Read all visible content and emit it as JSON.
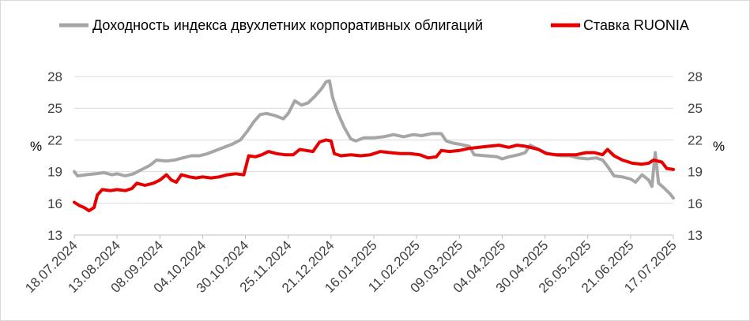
{
  "chart_data": {
    "type": "line",
    "x_tick_labels": [
      "18.07.2024",
      "13.08.2024",
      "08.09.2024",
      "04.10.2024",
      "30.10.2024",
      "25.11.2024",
      "21.12.2024",
      "16.01.2025",
      "11.02.2025",
      "09.03.2025",
      "04.04.2025",
      "30.04.2025",
      "26.05.2025",
      "21.06.2025",
      "17.07.2025"
    ],
    "x_range": [
      "2024-07-18",
      "2025-07-17"
    ],
    "y_left": {
      "ticks": [
        13,
        16,
        19,
        22,
        25,
        28
      ],
      "range": [
        13,
        28
      ],
      "unit": "%"
    },
    "y_right": {
      "ticks": [
        13,
        16,
        19,
        22,
        25,
        28
      ],
      "range": [
        13,
        28
      ],
      "unit": "%"
    },
    "grid": "horizontal",
    "legend_position": "top",
    "series": [
      {
        "name": "Доходность индекса двухлетних корпоративных  облигаций",
        "color": "#a6a6a6",
        "points": [
          [
            "2024-07-18",
            19.0
          ],
          [
            "2024-07-20",
            18.6
          ],
          [
            "2024-07-25",
            18.7
          ],
          [
            "2024-07-31",
            18.8
          ],
          [
            "2024-08-05",
            18.9
          ],
          [
            "2024-08-10",
            18.7
          ],
          [
            "2024-08-13",
            18.8
          ],
          [
            "2024-08-18",
            18.6
          ],
          [
            "2024-08-23",
            18.8
          ],
          [
            "2024-08-28",
            19.2
          ],
          [
            "2024-09-02",
            19.6
          ],
          [
            "2024-09-06",
            20.1
          ],
          [
            "2024-09-12",
            20.0
          ],
          [
            "2024-09-17",
            20.1
          ],
          [
            "2024-09-22",
            20.3
          ],
          [
            "2024-09-27",
            20.5
          ],
          [
            "2024-10-02",
            20.5
          ],
          [
            "2024-10-07",
            20.7
          ],
          [
            "2024-10-12",
            21.0
          ],
          [
            "2024-10-17",
            21.3
          ],
          [
            "2024-10-22",
            21.6
          ],
          [
            "2024-10-27",
            22.0
          ],
          [
            "2024-10-31",
            22.8
          ],
          [
            "2024-11-04",
            23.7
          ],
          [
            "2024-11-08",
            24.4
          ],
          [
            "2024-11-12",
            24.5
          ],
          [
            "2024-11-17",
            24.3
          ],
          [
            "2024-11-22",
            24.0
          ],
          [
            "2024-11-25",
            24.5
          ],
          [
            "2024-11-29",
            25.7
          ],
          [
            "2024-12-03",
            25.3
          ],
          [
            "2024-12-07",
            25.5
          ],
          [
            "2024-12-11",
            26.1
          ],
          [
            "2024-12-15",
            26.8
          ],
          [
            "2024-12-18",
            27.5
          ],
          [
            "2024-12-20",
            27.6
          ],
          [
            "2024-12-22",
            26.0
          ],
          [
            "2024-12-25",
            24.6
          ],
          [
            "2024-12-29",
            23.2
          ],
          [
            "2025-01-02",
            22.1
          ],
          [
            "2025-01-05",
            21.9
          ],
          [
            "2025-01-10",
            22.2
          ],
          [
            "2025-01-16",
            22.2
          ],
          [
            "2025-01-22",
            22.3
          ],
          [
            "2025-01-28",
            22.5
          ],
          [
            "2025-02-03",
            22.3
          ],
          [
            "2025-02-09",
            22.5
          ],
          [
            "2025-02-14",
            22.4
          ],
          [
            "2025-02-20",
            22.6
          ],
          [
            "2025-02-26",
            22.6
          ],
          [
            "2025-03-01",
            21.9
          ],
          [
            "2025-03-05",
            21.7
          ],
          [
            "2025-03-09",
            21.6
          ],
          [
            "2025-03-15",
            21.4
          ],
          [
            "2025-03-18",
            20.6
          ],
          [
            "2025-03-25",
            20.5
          ],
          [
            "2025-04-01",
            20.4
          ],
          [
            "2025-04-04",
            20.2
          ],
          [
            "2025-04-08",
            20.4
          ],
          [
            "2025-04-14",
            20.6
          ],
          [
            "2025-04-18",
            20.8
          ],
          [
            "2025-04-21",
            21.5
          ],
          [
            "2025-04-25",
            21.2
          ],
          [
            "2025-04-30",
            20.8
          ],
          [
            "2025-05-05",
            20.6
          ],
          [
            "2025-05-10",
            20.5
          ],
          [
            "2025-05-15",
            20.5
          ],
          [
            "2025-05-20",
            20.3
          ],
          [
            "2025-05-26",
            20.2
          ],
          [
            "2025-05-31",
            20.3
          ],
          [
            "2025-06-04",
            20.1
          ],
          [
            "2025-06-07",
            19.5
          ],
          [
            "2025-06-11",
            18.6
          ],
          [
            "2025-06-16",
            18.5
          ],
          [
            "2025-06-21",
            18.3
          ],
          [
            "2025-06-24",
            18.0
          ],
          [
            "2025-06-28",
            18.7
          ],
          [
            "2025-07-02",
            18.2
          ],
          [
            "2025-07-04",
            17.6
          ],
          [
            "2025-07-06",
            20.8
          ],
          [
            "2025-07-08",
            17.9
          ],
          [
            "2025-07-11",
            17.5
          ],
          [
            "2025-07-15",
            16.9
          ],
          [
            "2025-07-17",
            16.5
          ]
        ]
      },
      {
        "name": "Ставка RUONIA",
        "color": "#e60000",
        "points": [
          [
            "2024-07-18",
            16.1
          ],
          [
            "2024-07-21",
            15.8
          ],
          [
            "2024-07-24",
            15.6
          ],
          [
            "2024-07-27",
            15.3
          ],
          [
            "2024-07-30",
            15.6
          ],
          [
            "2024-08-01",
            16.8
          ],
          [
            "2024-08-04",
            17.3
          ],
          [
            "2024-08-09",
            17.2
          ],
          [
            "2024-08-13",
            17.3
          ],
          [
            "2024-08-18",
            17.2
          ],
          [
            "2024-08-22",
            17.4
          ],
          [
            "2024-08-25",
            17.9
          ],
          [
            "2024-08-30",
            17.7
          ],
          [
            "2024-09-04",
            17.9
          ],
          [
            "2024-09-08",
            18.2
          ],
          [
            "2024-09-12",
            18.7
          ],
          [
            "2024-09-15",
            18.2
          ],
          [
            "2024-09-18",
            18.0
          ],
          [
            "2024-09-21",
            18.7
          ],
          [
            "2024-09-26",
            18.5
          ],
          [
            "2024-09-30",
            18.4
          ],
          [
            "2024-10-04",
            18.5
          ],
          [
            "2024-10-09",
            18.4
          ],
          [
            "2024-10-14",
            18.5
          ],
          [
            "2024-10-19",
            18.7
          ],
          [
            "2024-10-24",
            18.8
          ],
          [
            "2024-10-29",
            18.7
          ],
          [
            "2024-11-01",
            20.5
          ],
          [
            "2024-11-05",
            20.4
          ],
          [
            "2024-11-09",
            20.6
          ],
          [
            "2024-11-13",
            20.9
          ],
          [
            "2024-11-18",
            20.7
          ],
          [
            "2024-11-23",
            20.6
          ],
          [
            "2024-11-28",
            20.6
          ],
          [
            "2024-12-02",
            21.1
          ],
          [
            "2024-12-06",
            21.0
          ],
          [
            "2024-12-10",
            20.9
          ],
          [
            "2024-12-14",
            21.8
          ],
          [
            "2024-12-18",
            22.0
          ],
          [
            "2024-12-21",
            21.9
          ],
          [
            "2024-12-23",
            20.7
          ],
          [
            "2024-12-27",
            20.5
          ],
          [
            "2025-01-02",
            20.6
          ],
          [
            "2025-01-08",
            20.5
          ],
          [
            "2025-01-14",
            20.6
          ],
          [
            "2025-01-20",
            20.9
          ],
          [
            "2025-01-26",
            20.8
          ],
          [
            "2025-02-01",
            20.7
          ],
          [
            "2025-02-07",
            20.7
          ],
          [
            "2025-02-13",
            20.6
          ],
          [
            "2025-02-18",
            20.3
          ],
          [
            "2025-02-23",
            20.4
          ],
          [
            "2025-02-26",
            21.0
          ],
          [
            "2025-03-03",
            20.9
          ],
          [
            "2025-03-09",
            21.0
          ],
          [
            "2025-03-15",
            21.2
          ],
          [
            "2025-03-21",
            21.3
          ],
          [
            "2025-03-27",
            21.4
          ],
          [
            "2025-04-02",
            21.5
          ],
          [
            "2025-04-08",
            21.3
          ],
          [
            "2025-04-13",
            21.5
          ],
          [
            "2025-04-18",
            21.4
          ],
          [
            "2025-04-21",
            21.3
          ],
          [
            "2025-04-26",
            21.1
          ],
          [
            "2025-05-01",
            20.7
          ],
          [
            "2025-05-07",
            20.6
          ],
          [
            "2025-05-13",
            20.6
          ],
          [
            "2025-05-19",
            20.6
          ],
          [
            "2025-05-25",
            20.8
          ],
          [
            "2025-05-30",
            20.8
          ],
          [
            "2025-06-04",
            20.6
          ],
          [
            "2025-06-07",
            21.1
          ],
          [
            "2025-06-11",
            20.5
          ],
          [
            "2025-06-16",
            20.1
          ],
          [
            "2025-06-22",
            19.8
          ],
          [
            "2025-06-28",
            19.7
          ],
          [
            "2025-07-02",
            19.8
          ],
          [
            "2025-07-05",
            20.1
          ],
          [
            "2025-07-10",
            19.9
          ],
          [
            "2025-07-13",
            19.3
          ],
          [
            "2025-07-17",
            19.2
          ]
        ]
      }
    ]
  }
}
